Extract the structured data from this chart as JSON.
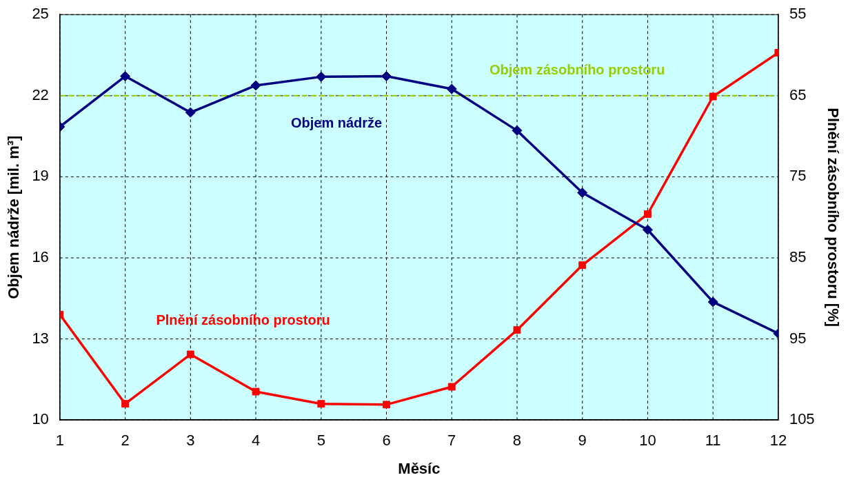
{
  "chart_data": {
    "type": "line",
    "xlabel": "Měsíc",
    "ylabel": "Objem nádrže [mil. m³]",
    "y2label": "Plnění zásobního prostoru [%]",
    "x": [
      1,
      2,
      3,
      4,
      5,
      6,
      7,
      8,
      9,
      10,
      11,
      12
    ],
    "xlim": [
      1,
      12
    ],
    "xticks": [
      1,
      2,
      3,
      4,
      5,
      6,
      7,
      8,
      9,
      10,
      11,
      12
    ],
    "ylim": [
      10,
      25
    ],
    "yticks": [
      10,
      13,
      16,
      19,
      22,
      25
    ],
    "y2lim": [
      105,
      55
    ],
    "y2ticks": [
      55,
      65,
      75,
      85,
      95,
      105
    ],
    "grid": true,
    "legend": false,
    "line_style": "solid",
    "series": [
      {
        "name": "Objem nádrže",
        "color": "#000080",
        "marker": "diamond",
        "values": [
          20.85,
          22.72,
          21.38,
          22.38,
          22.7,
          22.72,
          22.25,
          20.71,
          18.41,
          17.04,
          14.37,
          13.2
        ]
      },
      {
        "name": "Plnění zásobního prostoru",
        "color": "#ff0000",
        "marker": "square",
        "axis": "y2",
        "values": [
          92.0,
          103.0,
          96.9,
          101.5,
          103.0,
          103.1,
          100.9,
          93.9,
          85.9,
          79.6,
          65.1,
          59.7
        ]
      }
    ],
    "ref_lines": [
      {
        "axis": "y",
        "value": 22,
        "label": "Objem zásobního prostoru",
        "color": "#99cc00",
        "line_style": "dashed"
      }
    ]
  }
}
